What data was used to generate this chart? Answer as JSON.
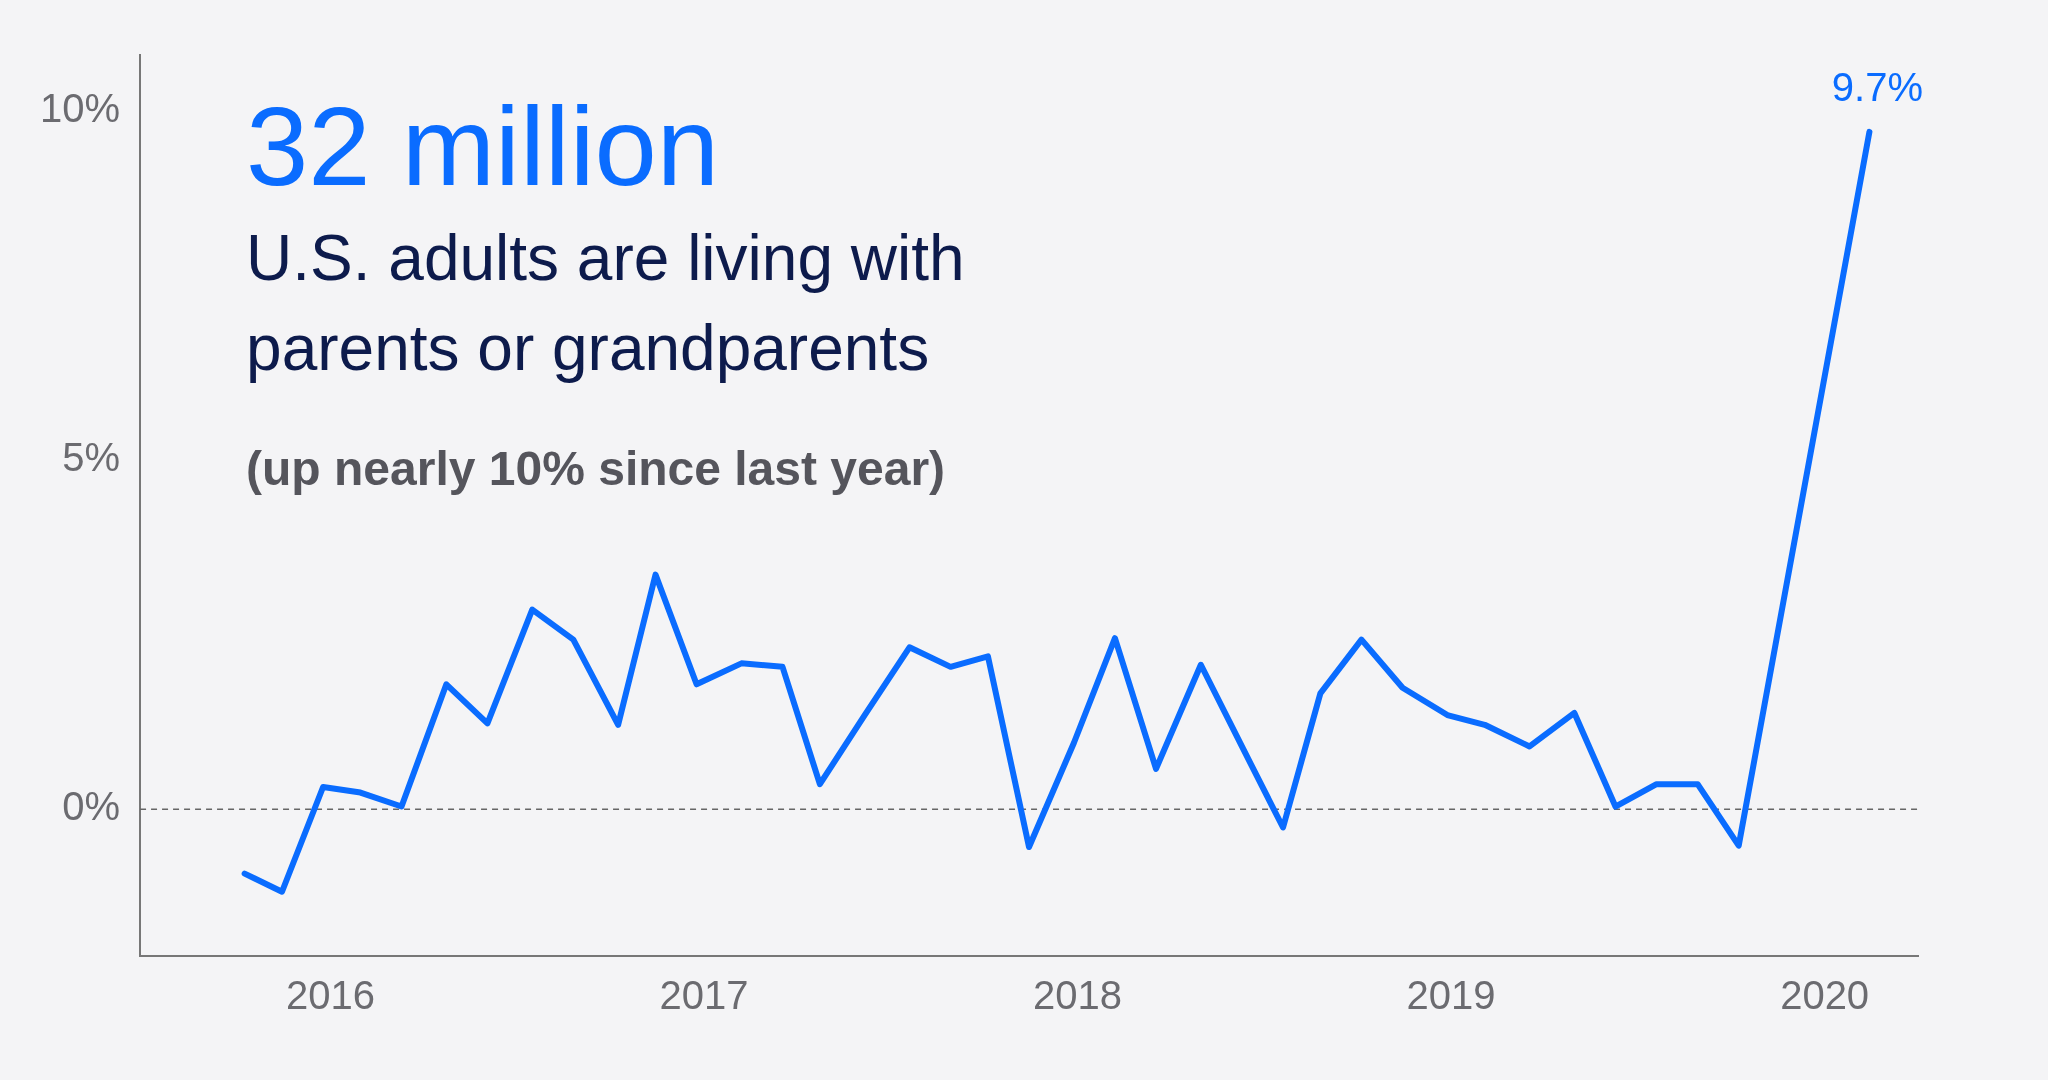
{
  "chart_data": {
    "type": "line",
    "title": "32 million",
    "subtitle": "U.S. adults are living with parents or grandparents",
    "annotations": [
      "(up nearly 10% since last year)"
    ],
    "x": [
      2015.77,
      2015.87,
      2015.98,
      2016.08,
      2016.19,
      2016.31,
      2016.42,
      2016.54,
      2016.65,
      2016.77,
      2016.87,
      2016.98,
      2017.1,
      2017.21,
      2017.31,
      2017.43,
      2017.55,
      2017.66,
      2017.76,
      2017.87,
      2017.99,
      2018.1,
      2018.21,
      2018.33,
      2018.44,
      2018.55,
      2018.65,
      2018.76,
      2018.87,
      2018.99,
      2019.09,
      2019.21,
      2019.33,
      2019.44,
      2019.55,
      2019.66,
      2019.77,
      2020.12
    ],
    "series": [
      {
        "color": "#0a6cff",
        "values": [
          -0.92,
          -1.18,
          0.32,
          0.24,
          0.04,
          1.79,
          1.23,
          2.86,
          2.43,
          1.21,
          3.36,
          1.79,
          2.09,
          2.04,
          0.36,
          1.35,
          2.32,
          2.04,
          2.19,
          -0.54,
          0.95,
          2.45,
          0.58,
          2.07,
          0.9,
          -0.26,
          1.66,
          2.43,
          1.74,
          1.35,
          1.21,
          0.9,
          1.38,
          0.04,
          0.36,
          0.36,
          -0.52,
          9.7
        ],
        "value_labels": [
          null,
          null,
          null,
          null,
          null,
          null,
          null,
          null,
          null,
          null,
          null,
          null,
          null,
          null,
          null,
          null,
          null,
          null,
          null,
          null,
          null,
          null,
          null,
          null,
          null,
          null,
          null,
          null,
          null,
          null,
          null,
          null,
          null,
          null,
          null,
          null,
          null,
          "9.7%"
        ]
      }
    ],
    "xlim": [
      2015.49,
      2020.25
    ],
    "xticks": [
      2016,
      2017,
      2018,
      2019,
      2020
    ],
    "ylim": [
      -2.1,
      10.8
    ],
    "yticks": [
      {
        "value": 0,
        "label": "0%"
      },
      {
        "value": 5,
        "label": "5%"
      },
      {
        "value": 10,
        "label": "10%"
      }
    ],
    "ref_lines": [
      {
        "axis": "y",
        "value": 0,
        "color": "#666666",
        "line_style": "dashed"
      }
    ],
    "grid": false,
    "legend": false,
    "marker": "none",
    "line_style": "solid"
  }
}
